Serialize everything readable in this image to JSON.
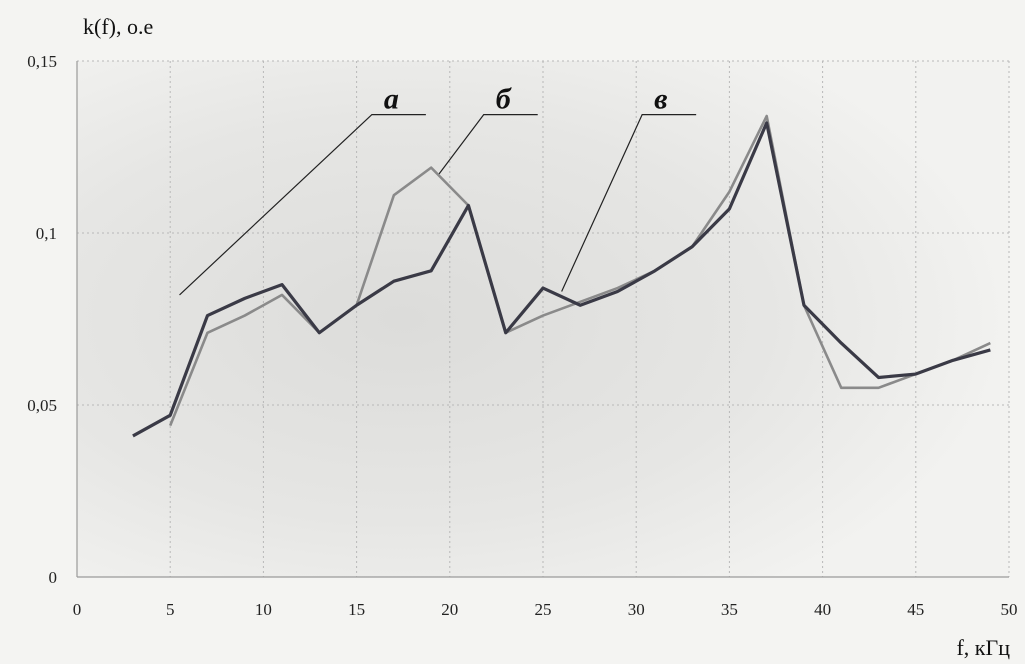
{
  "chart_data": {
    "type": "line",
    "ylabel": "k(f), о.е",
    "xlabel": "f, кГц",
    "xlim": [
      0,
      50
    ],
    "ylim": [
      0,
      0.15
    ],
    "x_ticks": [
      0,
      5,
      10,
      15,
      20,
      25,
      30,
      35,
      40,
      45,
      50
    ],
    "x_tick_labels": [
      "0",
      "5",
      "10",
      "15",
      "20",
      "25",
      "30",
      "35",
      "40",
      "45",
      "50"
    ],
    "y_ticks": [
      0,
      0.05,
      0.1,
      0.15
    ],
    "y_tick_labels": [
      "0",
      "0,05",
      "0,1",
      "0,15"
    ],
    "grid": true,
    "series": [
      {
        "name": "а",
        "color": "#3a3a46",
        "x": [
          3,
          5,
          7,
          9,
          11,
          13,
          15,
          17,
          19,
          21,
          23,
          25,
          27,
          29,
          31,
          33,
          35,
          37,
          39,
          41,
          43,
          45,
          47,
          49
        ],
        "y": [
          0.041,
          0.047,
          0.076,
          0.081,
          0.085,
          0.071,
          0.079,
          0.086,
          0.089,
          0.108,
          0.071,
          0.084,
          0.079,
          0.083,
          0.089,
          0.096,
          0.107,
          0.132,
          0.079,
          0.068,
          0.058,
          0.059,
          0.063,
          0.066
        ]
      },
      {
        "name": "б",
        "color": "#8a8a8a",
        "x": [
          5,
          7,
          9,
          11,
          13,
          15,
          17,
          19,
          21,
          23,
          25,
          27,
          29,
          31,
          33,
          35,
          37,
          39,
          41,
          43,
          45,
          47,
          49
        ],
        "y": [
          0.044,
          0.071,
          0.076,
          0.082,
          0.071,
          0.079,
          0.111,
          0.119,
          0.108,
          0.071,
          0.076,
          0.08,
          0.084,
          0.089,
          0.096,
          0.112,
          0.134,
          0.079,
          0.055,
          0.055,
          0.059,
          0.063,
          0.068
        ]
      }
    ],
    "annotations": [
      {
        "text": "а",
        "target_x": 5.5,
        "target_y": 0.082,
        "text_x": 17,
        "text_y": 0.135
      },
      {
        "text": "б",
        "target_x": 19.4,
        "target_y": 0.117,
        "text_x": 23,
        "text_y": 0.135
      },
      {
        "text": "в",
        "target_x": 26,
        "target_y": 0.083,
        "text_x": 31.5,
        "text_y": 0.135
      }
    ]
  }
}
